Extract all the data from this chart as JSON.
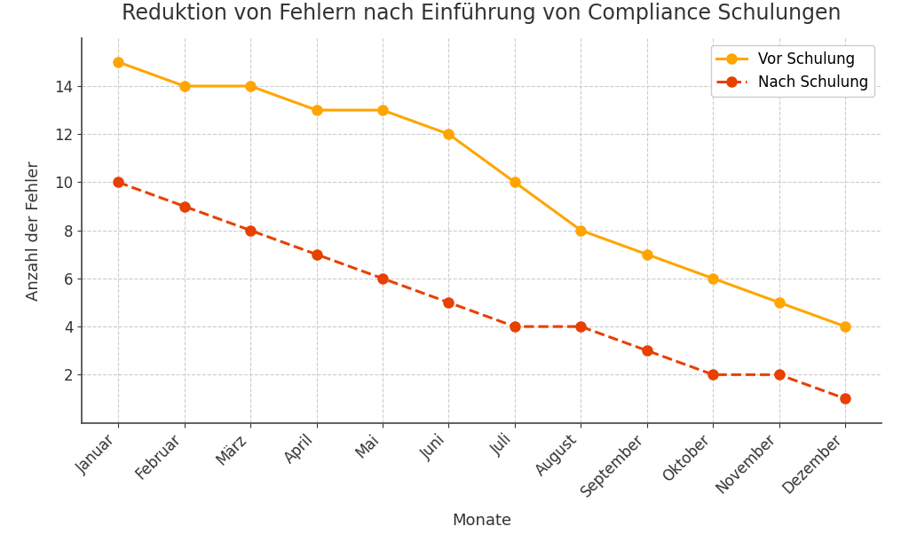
{
  "title": "Reduktion von Fehlern nach Einführung von Compliance Schulungen",
  "xlabel": "Monate",
  "ylabel": "Anzahl der Fehler",
  "months": [
    "Januar",
    "Februar",
    "März",
    "April",
    "Mai",
    "Juni",
    "Juli",
    "August",
    "September",
    "Oktober",
    "November",
    "Dezember"
  ],
  "vor_schulung": [
    15,
    14,
    14,
    13,
    13,
    12,
    10,
    8,
    7,
    6,
    5,
    4
  ],
  "nach_schulung": [
    10,
    9,
    8,
    7,
    6,
    5,
    4,
    4,
    3,
    2,
    2,
    1
  ],
  "vor_color": "#FFA500",
  "nach_color": "#E84000",
  "vor_label": "Vor Schulung",
  "nach_label": "Nach Schulung",
  "background_color": "#ffffff",
  "plot_bg_color": "#ffffff",
  "ylim": [
    0,
    16
  ],
  "yticks": [
    2,
    4,
    6,
    8,
    10,
    12,
    14
  ],
  "grid_color": "#cccccc",
  "title_fontsize": 17,
  "label_fontsize": 13,
  "tick_fontsize": 12,
  "legend_fontsize": 12
}
